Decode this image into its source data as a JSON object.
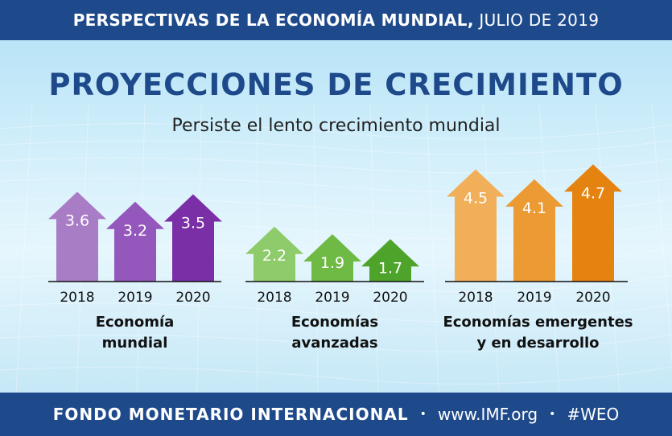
{
  "header": {
    "title_bold": "PERSPECTIVAS DE LA ECONOMÍA MUNDIAL,",
    "title_date": "JULIO DE 2019"
  },
  "main": {
    "title": "PROYECCIONES DE CRECIMIENTO",
    "subtitle": "Persiste el lento crecimiento mundial"
  },
  "footer": {
    "org": "FONDO MONETARIO INTERNACIONAL",
    "sep": "•",
    "url": "www.IMF.org",
    "hashtag": "#WEO"
  },
  "chart_data": [
    {
      "type": "bar",
      "group_label_line1": "Economía",
      "group_label_line2": "mundial",
      "categories": [
        "2018",
        "2019",
        "2020"
      ],
      "values": [
        3.6,
        3.2,
        3.5
      ],
      "colors": [
        "#a97cc6",
        "#9457bb",
        "#7b2fa7"
      ]
    },
    {
      "type": "bar",
      "group_label_line1": "Economías",
      "group_label_line2": "avanzadas",
      "categories": [
        "2018",
        "2019",
        "2020"
      ],
      "values": [
        2.2,
        1.9,
        1.7
      ],
      "colors": [
        "#8ecb6a",
        "#6fba45",
        "#4ea42b"
      ]
    },
    {
      "type": "bar",
      "group_label_line1": "Economías emergentes",
      "group_label_line2": "y en desarrollo",
      "categories": [
        "2018",
        "2019",
        "2020"
      ],
      "values": [
        4.5,
        4.1,
        4.7
      ],
      "colors": [
        "#f1af5a",
        "#ec9a33",
        "#e58311"
      ]
    }
  ]
}
